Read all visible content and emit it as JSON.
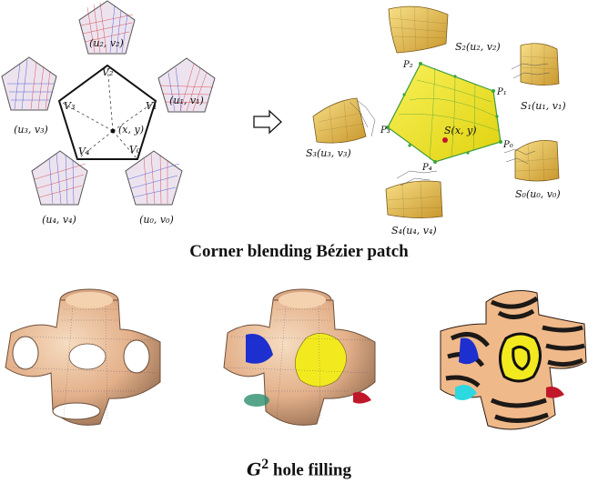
{
  "captions": {
    "top": "Corner blending Bézier patch",
    "bottom_math": "G",
    "bottom_sup": "2",
    "bottom_text": "hole filling"
  },
  "domain_labels": {
    "u2v2": "(u₂, v₂)",
    "u1v1": "(u₁, v₁)",
    "u3v3": "(u₃, v₃)",
    "u4v4": "(u₄, v₄)",
    "u0v0": "(u₀, v₀)"
  },
  "center_pentagon": {
    "vertices": [
      "V₂",
      "V₁",
      "V₀",
      "V₄",
      "V₃"
    ],
    "center": "(x, y)"
  },
  "patch_labels": {
    "s2": "S₂(u₂, v₂)",
    "s1": "S₁(u₁, v₁)",
    "s0": "S₀(u₀, v₀)",
    "s3": "S₃(u₃, v₃)",
    "s4": "S₄(u₄, v₄)",
    "center": "S(x, y)",
    "p2": "P₂",
    "p1": "P₁",
    "p0": "P₀",
    "p3": "P₃",
    "p4": "P₄"
  },
  "colors": {
    "domain_fill": "#ede3ef",
    "red_grid": "#d23a3a",
    "blue_grid": "#3a4ed2",
    "yellow_patch": "#f2ea1e",
    "tan_patch": "#e9c66a",
    "skin": "#e8b98e",
    "blue_patch": "#1d2fcf",
    "green_point": "#38a838",
    "red_point": "#c0182a",
    "cyan_patch": "#2dd8e0"
  }
}
